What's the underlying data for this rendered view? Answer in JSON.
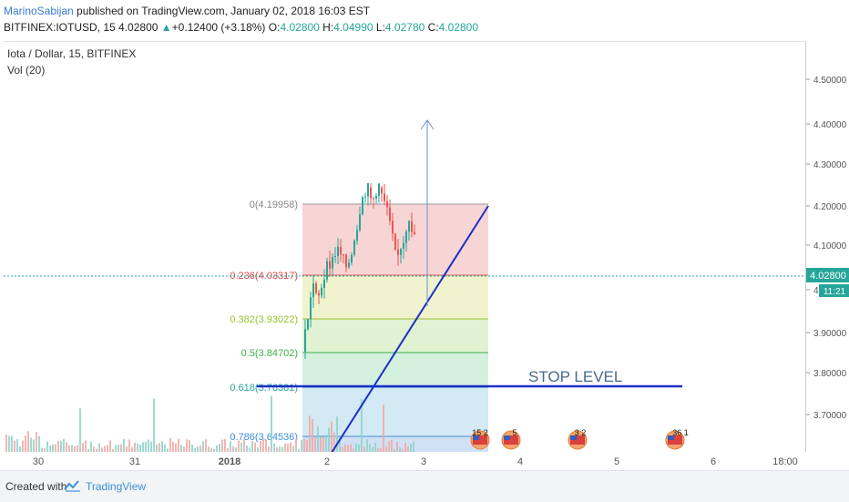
{
  "header": {
    "author": "MarinoSabijan",
    "published_text": " published on TradingView.com, January 02, 2018 16:03 EST",
    "symbol": "BITFINEX:IOTUSD, 15",
    "last": "4.02800",
    "change_arrow": "▲",
    "change": "+0.12400 (+3.18%)",
    "ohlc": [
      {
        "label": "O:",
        "value": "4.02800"
      },
      {
        "label": "H:",
        "value": "4.04990"
      },
      {
        "label": "L:",
        "value": "4.02780"
      },
      {
        "label": "C:",
        "value": "4.02800"
      }
    ]
  },
  "legend": {
    "symbol_label": "Iota / Dollar, 15, BITFINEX",
    "volume_label": "Vol (20)"
  },
  "price_axis": {
    "ticks": [
      "4.50000",
      "4.40000",
      "4.30000",
      "4.20000",
      "4.10000",
      "4.00000",
      "3.90000",
      "3.80000",
      "3.70000"
    ],
    "current_price": "4.02800",
    "countdown": "11:21"
  },
  "time_axis": {
    "ticks": [
      "30",
      "31",
      "2018",
      "2",
      "3",
      "4",
      "5",
      "6",
      "18:00"
    ]
  },
  "fibonacci": {
    "levels": [
      {
        "ratio": "0",
        "price": "4.19958",
        "label": "0(4.19958)",
        "color": "#888888"
      },
      {
        "ratio": "0.236",
        "price": "4.03317",
        "label": "0.236(4.03317)",
        "color": "#e04848"
      },
      {
        "ratio": "0.382",
        "price": "3.93022",
        "label": "0.382(3.93022)",
        "color": "#9cc131"
      },
      {
        "ratio": "0.5",
        "price": "3.84702",
        "label": "0.5(3.84702)",
        "color": "#3db04a"
      },
      {
        "ratio": "0.618",
        "price": "3.76381",
        "label": "0.618(3.76381)",
        "color": "#2aa79b"
      },
      {
        "ratio": "0.786",
        "price": "3.64536",
        "label": "0.786(3.64536)",
        "color": "#3b8ed8"
      }
    ]
  },
  "annotations": {
    "stop_level": "STOP LEVEL",
    "event_badges": [
      "15 2",
      "5",
      "3 2",
      "36 1"
    ]
  },
  "footer": {
    "created_with": "Created with",
    "brand": "TradingView"
  },
  "colors": {
    "up": "#26a69a",
    "down": "#ef5350",
    "trend_line": "#1c2fc8",
    "target_arrow": "#6b8fd6",
    "current_price_line": "#26a69a"
  }
}
